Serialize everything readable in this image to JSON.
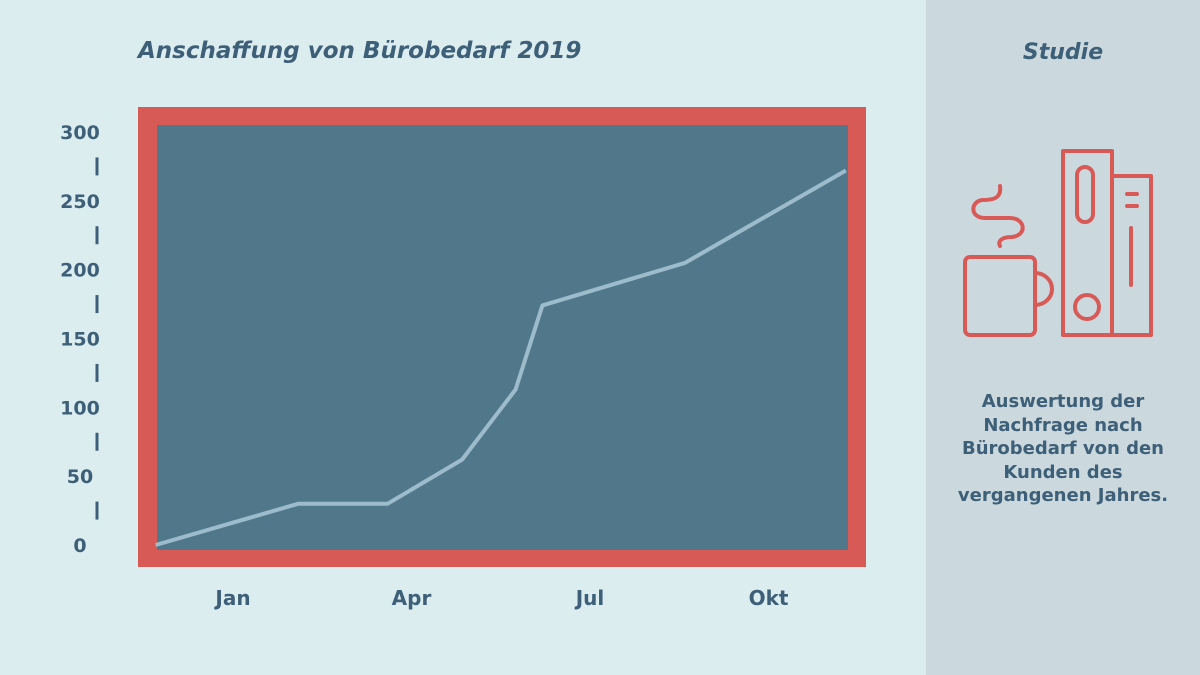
{
  "sidebar": {
    "title": "Studie",
    "description": "Auswertung der Nachfrage nach Bürobedarf von den Kunden des vergangenen Jahres.",
    "icon": "coffee-and-binders-icon"
  },
  "colors": {
    "background": "#dcedf0",
    "sidebar": "#cbd9de",
    "frame": "#d85a57",
    "plot": "#50788a",
    "line": "#9dbccb",
    "text": "#3e5f78"
  },
  "chart_data": {
    "type": "line",
    "title": "Anschaffung von Bürobedarf 2019",
    "xlabel": "",
    "ylabel": "",
    "x_tick_labels": [
      {
        "label": "Jan",
        "month": 1
      },
      {
        "label": "Apr",
        "month": 4
      },
      {
        "label": "Jul",
        "month": 7
      },
      {
        "label": "Okt",
        "month": 10
      }
    ],
    "y_tick_labels": [
      "0",
      "50",
      "100",
      "150",
      "200",
      "250",
      "300"
    ],
    "ylim": [
      0,
      300
    ],
    "xlim": [
      -0.3,
      11.4
    ],
    "grid": false,
    "series": [
      {
        "name": "Bürobedarf",
        "x": [
          -0.3,
          2.1,
          3.6,
          4.85,
          5.75,
          6.2,
          8.6,
          11.3
        ],
        "values": [
          0,
          30,
          30,
          62,
          113,
          174,
          205,
          272
        ]
      }
    ]
  }
}
